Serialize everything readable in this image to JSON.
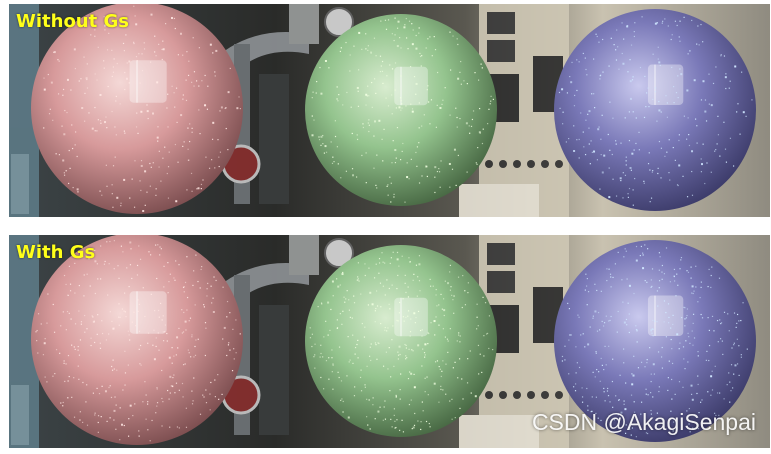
{
  "panels": [
    {
      "label": "Without Gs"
    },
    {
      "label": "With Gs"
    }
  ],
  "watermark": "CSDN @AkagiSenpai",
  "spheres": [
    {
      "name": "pink",
      "base": "#d79a9b",
      "light": "#f4d8d6",
      "dark": "#6e4244",
      "sparkle": "#ffe6e2"
    },
    {
      "name": "green",
      "base": "#94c48e",
      "light": "#d8eccf",
      "dark": "#3c5a38",
      "sparkle": "#f0ffe0"
    },
    {
      "name": "purple",
      "base": "#7a79b8",
      "light": "#c9c9ee",
      "dark": "#33325e",
      "sparkle": "#cfe6ff"
    }
  ],
  "colors": {
    "label": "#ffff1a",
    "background": "#2b2c2a"
  }
}
